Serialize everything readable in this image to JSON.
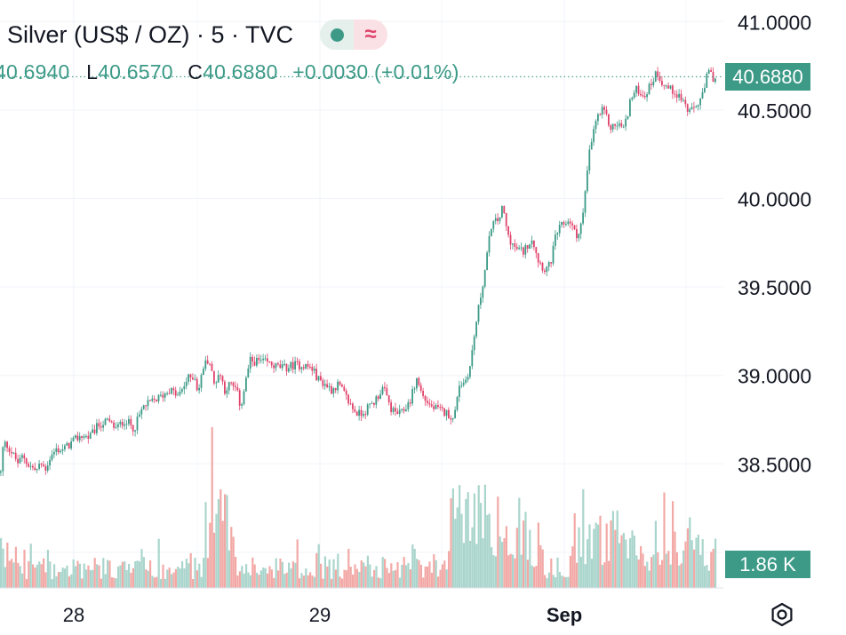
{
  "header": {
    "title": "Silver (US$ / OZ) · 5 · TVC",
    "ohlc": {
      "open_value": "40.6940",
      "low_label": "L",
      "low_value": "40.6570",
      "close_label": "C",
      "close_value": "40.6880",
      "change": "+0.0030 (+0.01%)"
    }
  },
  "price_tag": "40.6880",
  "volume_tag": "1.86 K",
  "colors": {
    "up": "#3c9a87",
    "down": "#e0436b",
    "vol_up": "#a9d5cc",
    "vol_down": "#f2a9a6"
  },
  "icons": {
    "settings": "gear-icon"
  },
  "chart_data": {
    "type": "candlestick",
    "symbol": "Silver (US$ / OZ)",
    "interval": "5",
    "source": "TVC",
    "y_ticks": [
      "41.0000",
      "40.5000",
      "40.0000",
      "39.5000",
      "39.0000",
      "38.5000"
    ],
    "ylim": [
      38.0,
      41.05
    ],
    "x_ticks": [
      "28",
      "29",
      "Sep"
    ],
    "last_price": 40.688,
    "price_path": [
      [
        0,
        38.45
      ],
      [
        3,
        38.62
      ],
      [
        8,
        38.6
      ],
      [
        14,
        38.55
      ],
      [
        20,
        38.5
      ],
      [
        25,
        38.55
      ],
      [
        30,
        38.5
      ],
      [
        35,
        38.48
      ],
      [
        40,
        38.46
      ],
      [
        45,
        38.5
      ],
      [
        50,
        38.47
      ],
      [
        55,
        38.53
      ],
      [
        62,
        38.58
      ],
      [
        70,
        38.58
      ],
      [
        80,
        38.62
      ],
      [
        90,
        38.66
      ],
      [
        100,
        38.65
      ],
      [
        110,
        38.72
      ],
      [
        120,
        38.74
      ],
      [
        130,
        38.7
      ],
      [
        140,
        38.75
      ],
      [
        150,
        38.7
      ],
      [
        160,
        38.82
      ],
      [
        170,
        38.85
      ],
      [
        180,
        38.88
      ],
      [
        190,
        38.92
      ],
      [
        200,
        38.88
      ],
      [
        210,
        38.98
      ],
      [
        218,
        39.0
      ],
      [
        222,
        38.9
      ],
      [
        228,
        39.05
      ],
      [
        234,
        39.1
      ],
      [
        240,
        38.95
      ],
      [
        246,
        39.02
      ],
      [
        252,
        38.92
      ],
      [
        258,
        38.95
      ],
      [
        265,
        38.92
      ],
      [
        270,
        38.82
      ],
      [
        275,
        38.95
      ],
      [
        280,
        39.08
      ],
      [
        290,
        39.08
      ],
      [
        300,
        39.07
      ],
      [
        310,
        39.05
      ],
      [
        320,
        39.04
      ],
      [
        330,
        39.06
      ],
      [
        340,
        39.06
      ],
      [
        350,
        39.04
      ],
      [
        357,
        38.98
      ],
      [
        365,
        38.95
      ],
      [
        372,
        38.92
      ],
      [
        380,
        38.95
      ],
      [
        388,
        38.88
      ],
      [
        395,
        38.82
      ],
      [
        402,
        38.78
      ],
      [
        410,
        38.8
      ],
      [
        420,
        38.85
      ],
      [
        430,
        38.93
      ],
      [
        440,
        38.8
      ],
      [
        450,
        38.78
      ],
      [
        460,
        38.85
      ],
      [
        468,
        38.98
      ],
      [
        475,
        38.88
      ],
      [
        485,
        38.82
      ],
      [
        495,
        38.8
      ],
      [
        505,
        38.78
      ],
      [
        510,
        38.74
      ],
      [
        515,
        38.95
      ],
      [
        522,
        38.96
      ],
      [
        528,
        39.05
      ],
      [
        535,
        39.3
      ],
      [
        545,
        39.6
      ],
      [
        552,
        39.85
      ],
      [
        560,
        39.88
      ],
      [
        565,
        39.95
      ],
      [
        570,
        39.8
      ],
      [
        578,
        39.72
      ],
      [
        588,
        39.7
      ],
      [
        598,
        39.78
      ],
      [
        605,
        39.65
      ],
      [
        612,
        39.6
      ],
      [
        618,
        39.62
      ],
      [
        625,
        39.8
      ],
      [
        632,
        39.85
      ],
      [
        640,
        39.88
      ],
      [
        648,
        39.78
      ],
      [
        655,
        39.9
      ],
      [
        662,
        40.25
      ],
      [
        670,
        40.45
      ],
      [
        678,
        40.5
      ],
      [
        686,
        40.4
      ],
      [
        694,
        40.42
      ],
      [
        702,
        40.4
      ],
      [
        708,
        40.55
      ],
      [
        716,
        40.62
      ],
      [
        724,
        40.58
      ],
      [
        732,
        40.65
      ],
      [
        738,
        40.72
      ],
      [
        745,
        40.65
      ],
      [
        752,
        40.62
      ],
      [
        760,
        40.6
      ],
      [
        768,
        40.55
      ],
      [
        775,
        40.48
      ],
      [
        782,
        40.52
      ],
      [
        790,
        40.58
      ],
      [
        796,
        40.72
      ],
      [
        802,
        40.68
      ],
      [
        806,
        40.69
      ]
    ]
  }
}
